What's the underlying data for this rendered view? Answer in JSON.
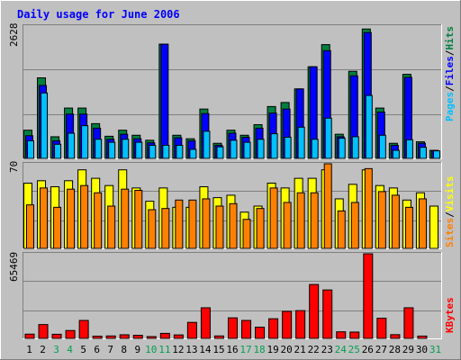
{
  "chart_data": [
    {
      "type": "bar",
      "title": "Daily usage for June 2006",
      "categories": [
        "1",
        "2",
        "3",
        "4",
        "5",
        "6",
        "7",
        "8",
        "9",
        "10",
        "11",
        "12",
        "13",
        "14",
        "15",
        "16",
        "17",
        "18",
        "19",
        "20",
        "21",
        "22",
        "23",
        "24",
        "25",
        "26",
        "27",
        "28",
        "29",
        "30",
        "31"
      ],
      "weekend_days": [
        "3",
        "4",
        "10",
        "11",
        "17",
        "18",
        "24",
        "25",
        "31"
      ],
      "ylim": [
        0,
        2628
      ],
      "max_label": "2628",
      "series": [
        {
          "name": "Hits",
          "color": "#008040",
          "values": [
            560,
            1600,
            430,
            1000,
            1000,
            690,
            440,
            560,
            460,
            360,
            2270,
            460,
            390,
            980,
            300,
            560,
            460,
            670,
            1030,
            1110,
            1380,
            1820,
            2260,
            480,
            1730,
            2570,
            1000,
            300,
            1670,
            330,
            160
          ]
        },
        {
          "name": "Files",
          "color": "#0000ff",
          "values": [
            450,
            1450,
            350,
            880,
            880,
            600,
            380,
            480,
            390,
            310,
            2270,
            410,
            350,
            890,
            260,
            500,
            420,
            600,
            900,
            980,
            1380,
            1820,
            2140,
            430,
            1640,
            2500,
            920,
            260,
            1610,
            300,
            150
          ]
        },
        {
          "name": "Pages",
          "color": "#00c0ff",
          "values": [
            350,
            1300,
            280,
            500,
            650,
            380,
            320,
            380,
            320,
            260,
            260,
            260,
            180,
            540,
            230,
            360,
            320,
            380,
            490,
            420,
            620,
            380,
            800,
            400,
            430,
            1250,
            460,
            160,
            370,
            220,
            150
          ]
        }
      ]
    },
    {
      "type": "bar",
      "categories": [
        "1",
        "2",
        "3",
        "4",
        "5",
        "6",
        "7",
        "8",
        "9",
        "10",
        "11",
        "12",
        "13",
        "14",
        "15",
        "16",
        "17",
        "18",
        "19",
        "20",
        "21",
        "22",
        "23",
        "24",
        "25",
        "26",
        "27",
        "28",
        "29",
        "30",
        "31"
      ],
      "ylim": [
        0,
        70
      ],
      "max_label": "70",
      "series": [
        {
          "name": "Visits",
          "color": "#ffff00",
          "values": [
            54,
            56,
            51,
            56,
            65,
            58,
            52,
            65,
            50,
            39,
            50,
            34,
            34,
            51,
            42,
            44,
            30,
            35,
            54,
            50,
            58,
            58,
            65,
            41,
            53,
            65,
            52,
            50,
            40,
            46,
            35
          ]
        },
        {
          "name": "Sites",
          "color": "#ff8000",
          "values": [
            36,
            50,
            34,
            49,
            52,
            46,
            35,
            49,
            48,
            32,
            33,
            40,
            40,
            41,
            35,
            37,
            24,
            33,
            50,
            38,
            46,
            46,
            70,
            31,
            38,
            66,
            47,
            44,
            34,
            41,
            0
          ]
        }
      ]
    },
    {
      "type": "bar",
      "categories": [
        "1",
        "2",
        "3",
        "4",
        "5",
        "6",
        "7",
        "8",
        "9",
        "10",
        "11",
        "12",
        "13",
        "14",
        "15",
        "16",
        "17",
        "18",
        "19",
        "20",
        "21",
        "22",
        "23",
        "24",
        "25",
        "26",
        "27",
        "28",
        "29",
        "30",
        "31"
      ],
      "ylim": [
        0,
        65469
      ],
      "max_label": "65469",
      "series": [
        {
          "name": "KBytes",
          "color": "#ff0000",
          "values": [
            3300,
            10700,
            3200,
            6100,
            13900,
            1700,
            1900,
            2800,
            2400,
            1400,
            3900,
            2700,
            12400,
            23700,
            1900,
            15900,
            13900,
            8700,
            15200,
            20900,
            21500,
            41700,
            37500,
            5100,
            4900,
            65469,
            15600,
            2900,
            23700,
            1800,
            0
          ]
        }
      ]
    }
  ],
  "labels": {
    "title": "Daily usage for June 2006",
    "right_top": {
      "pages": "Pages",
      "files": "Files",
      "hits": "Hits",
      "sep": "/"
    },
    "right_mid": {
      "sites": "Sites",
      "visits": "Visits",
      "sep": "/"
    },
    "right_bot": {
      "kbytes": "KBytes"
    }
  },
  "colors": {
    "background": "#c0c0c0",
    "plot_bg": "#c0c0c0",
    "title": "#0000ff",
    "weekday_label": "#000000",
    "weekend_label": "#00a050"
  }
}
